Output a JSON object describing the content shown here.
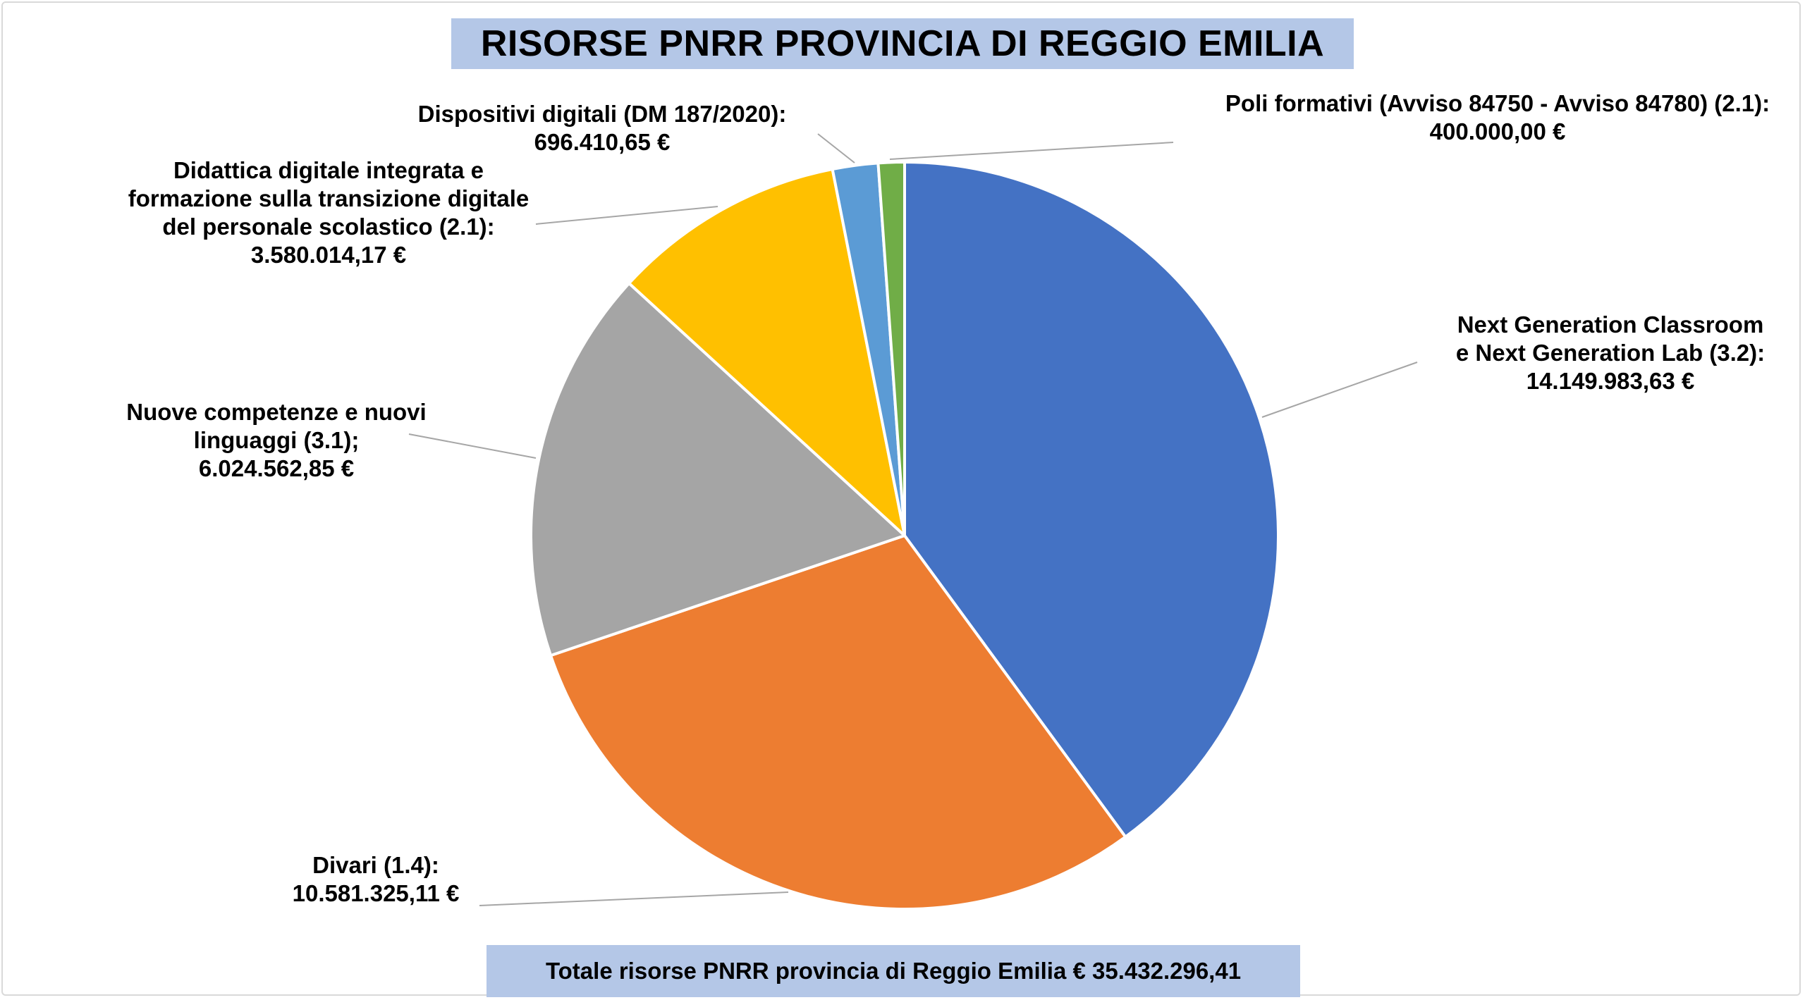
{
  "chart_data": {
    "type": "pie",
    "title": "RISORSE PNRR PROVINCIA DI REGGIO EMILIA",
    "footer": "Totale risorse PNRR provincia di Reggio Emilia € 35.432.296,41",
    "slices": [
      {
        "label_lines": [
          "Next Generation Classroom",
          "e Next Generation Lab (3.2):"
        ],
        "value_text": "14.149.983,63 €",
        "value": 14149983.63,
        "color": "#4472c4"
      },
      {
        "label_lines": [
          "Divari (1.4):"
        ],
        "value_text": "10.581.325,11 €",
        "value": 10581325.11,
        "color": "#ed7d31"
      },
      {
        "label_lines": [
          "Nuove competenze e nuovi",
          "linguaggi (3.1);"
        ],
        "value_text": "6.024.562,85 €",
        "value": 6024562.85,
        "color": "#a5a5a5"
      },
      {
        "label_lines": [
          "Didattica digitale integrata e",
          "formazione sulla transizione digitale",
          "del personale scolastico (2.1):"
        ],
        "value_text": "3.580.014,17 €",
        "value": 3580014.17,
        "color": "#ffc000"
      },
      {
        "label_lines": [
          "Dispositivi digitali (DM 187/2020):"
        ],
        "value_text": "696.410,65 €",
        "value": 696410.65,
        "color": "#5b9bd5"
      },
      {
        "label_lines": [
          "Poli formativi (Avviso 84750 - Avviso 84780) (2.1):"
        ],
        "value_text": "400.000,00 €",
        "value": 400000.0,
        "color": "#70ad47"
      }
    ]
  }
}
